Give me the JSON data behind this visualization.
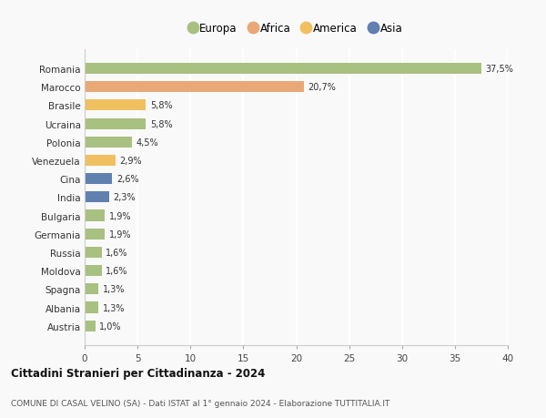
{
  "countries": [
    "Romania",
    "Marocco",
    "Brasile",
    "Ucraina",
    "Polonia",
    "Venezuela",
    "Cina",
    "India",
    "Bulgaria",
    "Germania",
    "Russia",
    "Moldova",
    "Spagna",
    "Albania",
    "Austria"
  ],
  "values": [
    37.5,
    20.7,
    5.8,
    5.8,
    4.5,
    2.9,
    2.6,
    2.3,
    1.9,
    1.9,
    1.6,
    1.6,
    1.3,
    1.3,
    1.0
  ],
  "labels": [
    "37,5%",
    "20,7%",
    "5,8%",
    "5,8%",
    "4,5%",
    "2,9%",
    "2,6%",
    "2,3%",
    "1,9%",
    "1,9%",
    "1,6%",
    "1,6%",
    "1,3%",
    "1,3%",
    "1,0%"
  ],
  "colors": [
    "#a8c080",
    "#e8a878",
    "#f0c060",
    "#a8c080",
    "#a8c080",
    "#f0c060",
    "#6080b0",
    "#6080b0",
    "#a8c080",
    "#a8c080",
    "#a8c080",
    "#a8c080",
    "#a8c080",
    "#a8c080",
    "#a8c080"
  ],
  "legend_labels": [
    "Europa",
    "Africa",
    "America",
    "Asia"
  ],
  "legend_colors": [
    "#a8c080",
    "#e8a878",
    "#f0c060",
    "#6080b0"
  ],
  "title": "Cittadini Stranieri per Cittadinanza - 2024",
  "subtitle": "COMUNE DI CASAL VELINO (SA) - Dati ISTAT al 1° gennaio 2024 - Elaborazione TUTTITALIA.IT",
  "xlim": [
    0,
    40
  ],
  "xticks": [
    0,
    5,
    10,
    15,
    20,
    25,
    30,
    35,
    40
  ],
  "bg_color": "#f9f9f9",
  "grid_color": "#ffffff",
  "bar_height": 0.6
}
